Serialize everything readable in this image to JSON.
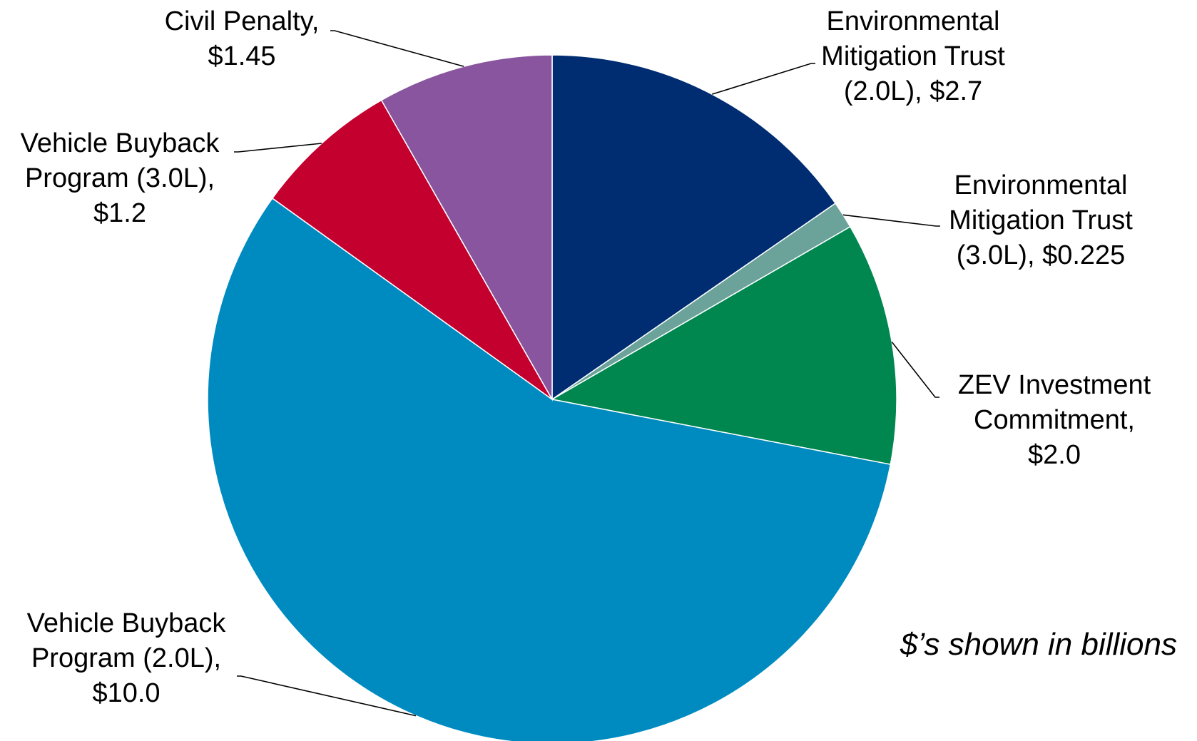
{
  "chart_data": {
    "type": "pie",
    "start_angle_deg": 0,
    "direction": "clockwise",
    "slices": [
      {
        "label_lines": [
          "Environmental",
          "Mitigation Trust",
          "(2.0L),  $2.7"
        ],
        "value": 2.7,
        "color": "#002D72"
      },
      {
        "label_lines": [
          "Environmental",
          "Mitigation Trust",
          "(3.0L),  $0.225"
        ],
        "value": 0.225,
        "color": "#6BA39B"
      },
      {
        "label_lines": [
          "ZEV Investment",
          "Commitment,",
          "$2.0"
        ],
        "value": 2.0,
        "color": "#00864F"
      },
      {
        "label_lines": [
          "Vehicle Buyback",
          "Program (2.0L),",
          "$10.0"
        ],
        "value": 10.0,
        "color": "#008BC0"
      },
      {
        "label_lines": [
          "Vehicle Buyback",
          "Program (3.0L),",
          "$1.2"
        ],
        "value": 1.2,
        "color": "#C4002E"
      },
      {
        "label_lines": [
          "Civil Penalty,",
          "$1.45"
        ],
        "value": 1.45,
        "color": "#88559E"
      }
    ],
    "note": "$’s shown in billions"
  }
}
